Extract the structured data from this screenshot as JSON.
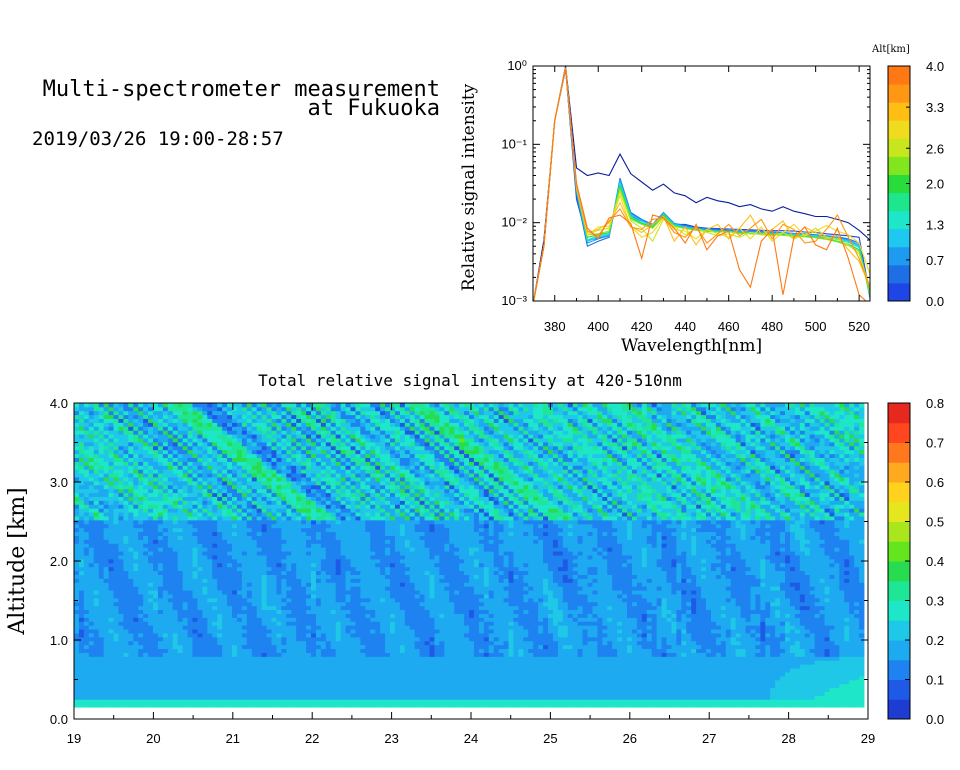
{
  "header": {
    "title_line1": "Multi-spectrometer measurement",
    "title_line2": "at Fukuoka",
    "date_range": "2019/03/26 19:00-28:57"
  },
  "chart_data": [
    {
      "type": "line",
      "ylog": true,
      "xlabel": "Wavelength[nm]",
      "ylabel": "Relative signal intensity",
      "xlim": [
        370,
        525
      ],
      "ylim": [
        0.001,
        1
      ],
      "x_ticks": [
        "380",
        "400",
        "420",
        "440",
        "460",
        "480",
        "500",
        "520"
      ],
      "y_ticks": [
        "10⁰",
        "10⁻¹",
        "10⁻²",
        "10⁻³"
      ],
      "x": [
        370,
        375,
        380,
        385,
        390,
        395,
        400,
        405,
        410,
        415,
        420,
        425,
        430,
        435,
        440,
        445,
        450,
        455,
        460,
        465,
        470,
        475,
        480,
        485,
        490,
        495,
        500,
        505,
        510,
        515,
        520,
        525
      ],
      "colorbar": {
        "title": "Alt[km]",
        "range": [
          0.0,
          4.0
        ],
        "tick_labels": [
          "4.0",
          "3.3",
          "2.6",
          "2.0",
          "1.3",
          "0.7",
          "0.0"
        ],
        "colors": [
          "#1e46e6",
          "#1e6ee6",
          "#1e9bf0",
          "#1ec8f0",
          "#1ee6c8",
          "#1ee68c",
          "#28dc3c",
          "#82e61e",
          "#c8e61e",
          "#f0dc1e",
          "#ffbe14",
          "#ff9614",
          "#ff7814"
        ]
      },
      "series": [
        {
          "alt": 0.0,
          "color": "#0a1ea0",
          "values": [
            0.0009,
            0.006,
            0.2,
            1.0,
            0.05,
            0.04,
            0.043,
            0.04,
            0.075,
            0.042,
            0.033,
            0.026,
            0.031,
            0.024,
            0.022,
            0.018,
            0.021,
            0.019,
            0.018,
            0.016,
            0.017,
            0.015,
            0.014,
            0.016,
            0.014,
            0.013,
            0.012,
            0.012,
            0.011,
            0.01,
            0.008,
            0.006
          ]
        },
        {
          "alt": 0.2,
          "color": "#1e46e6",
          "values": [
            0.0009,
            0.005,
            0.2,
            0.9,
            0.02,
            0.006,
            0.0063,
            0.0068,
            0.03,
            0.012,
            0.0105,
            0.0095,
            0.013,
            0.0095,
            0.0095,
            0.0088,
            0.0085,
            0.0084,
            0.0083,
            0.0082,
            0.0081,
            0.008,
            0.0079,
            0.0079,
            0.0078,
            0.0076,
            0.0075,
            0.0072,
            0.007,
            0.0068,
            0.0065,
            0.0012
          ]
        },
        {
          "alt": 0.5,
          "color": "#1e6ee6",
          "values": [
            0.0009,
            0.005,
            0.2,
            0.95,
            0.023,
            0.005,
            0.0058,
            0.0065,
            0.037,
            0.0135,
            0.011,
            0.0095,
            0.0135,
            0.0098,
            0.0092,
            0.0087,
            0.0084,
            0.0082,
            0.008,
            0.0079,
            0.0078,
            0.0077,
            0.0076,
            0.0075,
            0.0073,
            0.0072,
            0.007,
            0.0068,
            0.0066,
            0.0062,
            0.0055,
            0.0011
          ]
        },
        {
          "alt": 0.9,
          "color": "#1e9bf0",
          "values": [
            0.0009,
            0.005,
            0.2,
            0.95,
            0.025,
            0.0055,
            0.0062,
            0.0068,
            0.035,
            0.013,
            0.0108,
            0.0094,
            0.0132,
            0.0097,
            0.009,
            0.0085,
            0.0082,
            0.008,
            0.0079,
            0.0078,
            0.0077,
            0.0076,
            0.0075,
            0.0074,
            0.0072,
            0.0071,
            0.0069,
            0.0067,
            0.0065,
            0.006,
            0.0052,
            0.0011
          ]
        },
        {
          "alt": 1.3,
          "color": "#1ec8f0",
          "values": [
            0.0009,
            0.005,
            0.2,
            0.95,
            0.026,
            0.0058,
            0.0065,
            0.007,
            0.033,
            0.0125,
            0.0105,
            0.0092,
            0.013,
            0.0095,
            0.0088,
            0.0083,
            0.008,
            0.0078,
            0.0077,
            0.0076,
            0.0075,
            0.0074,
            0.0073,
            0.0072,
            0.0071,
            0.007,
            0.0068,
            0.0066,
            0.0063,
            0.0058,
            0.005,
            0.0012
          ]
        },
        {
          "alt": 1.6,
          "color": "#1ee6c8",
          "values": [
            0.0009,
            0.005,
            0.2,
            0.95,
            0.027,
            0.006,
            0.0068,
            0.0072,
            0.031,
            0.012,
            0.01,
            0.009,
            0.0128,
            0.0093,
            0.0086,
            0.0082,
            0.0079,
            0.0077,
            0.0076,
            0.0075,
            0.0074,
            0.0073,
            0.0072,
            0.0071,
            0.007,
            0.0069,
            0.0067,
            0.0064,
            0.0061,
            0.0056,
            0.0048,
            0.0012
          ]
        },
        {
          "alt": 2.0,
          "color": "#28dc3c",
          "values": [
            0.0009,
            0.005,
            0.2,
            0.95,
            0.028,
            0.0065,
            0.007,
            0.0075,
            0.029,
            0.0115,
            0.0098,
            0.0088,
            0.0125,
            0.0091,
            0.0085,
            0.0081,
            0.0078,
            0.0077,
            0.0078,
            0.0074,
            0.0073,
            0.0072,
            0.0071,
            0.007,
            0.0068,
            0.0067,
            0.0065,
            0.0062,
            0.0058,
            0.0053,
            0.0045,
            0.0012
          ]
        },
        {
          "alt": 2.3,
          "color": "#82e61e",
          "values": [
            0.0009,
            0.005,
            0.2,
            0.95,
            0.03,
            0.007,
            0.0072,
            0.0078,
            0.027,
            0.011,
            0.0095,
            0.0085,
            0.012,
            0.009,
            0.0084,
            0.008,
            0.0077,
            0.0076,
            0.0077,
            0.0073,
            0.0072,
            0.0071,
            0.007,
            0.0069,
            0.0067,
            0.0066,
            0.0064,
            0.0061,
            0.0057,
            0.0051,
            0.0043,
            0.0012
          ]
        },
        {
          "alt": 2.7,
          "color": "#c8e61e",
          "values": [
            0.0009,
            0.005,
            0.2,
            0.95,
            0.03,
            0.007,
            0.008,
            0.0085,
            0.025,
            0.0105,
            0.0085,
            0.0058,
            0.011,
            0.009,
            0.007,
            0.0085,
            0.0075,
            0.0068,
            0.0072,
            0.0065,
            0.0075,
            0.007,
            0.0068,
            0.0075,
            0.0062,
            0.007,
            0.0085,
            0.0065,
            0.0062,
            0.0052,
            0.004,
            0.0015
          ]
        },
        {
          "alt": 3.0,
          "color": "#f0dc1e",
          "values": [
            0.0009,
            0.005,
            0.2,
            0.95,
            0.028,
            0.0068,
            0.0088,
            0.009,
            0.022,
            0.009,
            0.0065,
            0.0075,
            0.0115,
            0.0082,
            0.0078,
            0.0062,
            0.0082,
            0.0072,
            0.0065,
            0.0085,
            0.0062,
            0.0088,
            0.0058,
            0.0075,
            0.0095,
            0.0068,
            0.0078,
            0.0092,
            0.0078,
            0.007,
            0.0055,
            0.0022
          ]
        },
        {
          "alt": 3.3,
          "color": "#ffbe14",
          "values": [
            0.0009,
            0.005,
            0.2,
            0.95,
            0.028,
            0.0075,
            0.0082,
            0.01,
            0.018,
            0.009,
            0.0075,
            0.0095,
            0.012,
            0.0058,
            0.0088,
            0.0052,
            0.0082,
            0.0095,
            0.0062,
            0.0085,
            0.0125,
            0.007,
            0.0082,
            0.0105,
            0.0062,
            0.0088,
            0.0075,
            0.0062,
            0.0068,
            0.0045,
            0.0032,
            0.0015
          ]
        },
        {
          "alt": 3.7,
          "color": "#ff9614",
          "values": [
            0.0009,
            0.005,
            0.2,
            0.95,
            0.03,
            0.0078,
            0.0068,
            0.0105,
            0.015,
            0.0088,
            0.0082,
            0.011,
            0.0115,
            0.0075,
            0.0065,
            0.0088,
            0.0055,
            0.0072,
            0.0095,
            0.0068,
            0.0085,
            0.011,
            0.0062,
            0.0095,
            0.0082,
            0.0055,
            0.0058,
            0.0082,
            0.0125,
            0.0065,
            0.0035,
            0.0015
          ]
        },
        {
          "alt": 4.0,
          "color": "#ff7814",
          "values": [
            0.0009,
            0.005,
            0.2,
            0.95,
            0.032,
            0.0085,
            0.0062,
            0.0115,
            0.0125,
            0.0098,
            0.0035,
            0.0125,
            0.0115,
            0.0085,
            0.0055,
            0.0095,
            0.0045,
            0.0068,
            0.0078,
            0.0025,
            0.0015,
            0.0058,
            0.0082,
            0.0012,
            0.0065,
            0.0088,
            0.0052,
            0.0045,
            0.0085,
            0.0035,
            0.0012,
            0.0009
          ]
        }
      ]
    },
    {
      "type": "heatmap",
      "title": "Total relative signal intensity at 420-510nm",
      "ylabel": "Altitude [km]",
      "xlabel": "",
      "xlim": [
        19,
        29
      ],
      "ylim": [
        0.0,
        4.0
      ],
      "x_ticks": [
        "19",
        "20",
        "21",
        "22",
        "23",
        "24",
        "25",
        "26",
        "27",
        "28",
        "29"
      ],
      "y_ticks": [
        "0.0",
        "1.0",
        "2.0",
        "3.0",
        "4.0"
      ],
      "data_x_range": [
        19,
        28.95
      ],
      "data_y_range": [
        0.15,
        4.0
      ],
      "colorbar": {
        "range": [
          0.0,
          0.8
        ],
        "tick_labels": [
          "0.8",
          "0.7",
          "0.6",
          "0.5",
          "0.4",
          "0.3",
          "0.2",
          "0.1",
          "0.0"
        ],
        "colors": [
          "#1e3cd2",
          "#1e5ae6",
          "#1e82f0",
          "#1eaaf0",
          "#1ec8e6",
          "#1ee6c8",
          "#1ee696",
          "#28dc50",
          "#64e61e",
          "#aae61e",
          "#e6e61e",
          "#ffd21e",
          "#ffaa1e",
          "#ff781e",
          "#ff461e",
          "#e6281e"
        ]
      },
      "description_values": {
        "near_ground_band_value": 0.3,
        "lower_layer_typical": 0.18,
        "upper_layer_typical": 0.25,
        "late_evening_lower_maximum": 0.35
      }
    }
  ]
}
